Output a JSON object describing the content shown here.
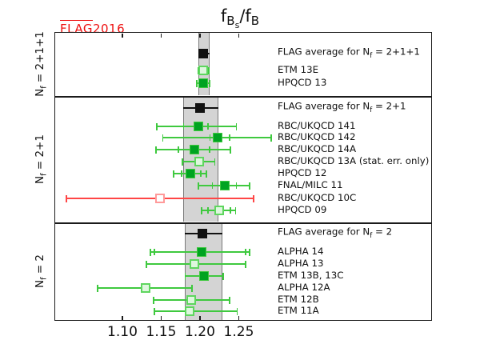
{
  "badge": {
    "flag": "FLAG",
    "year": "2016"
  },
  "title": {
    "base1": "f",
    "sub1": "B",
    "subsub1": "s",
    "base2": "/f",
    "sub2": "B"
  },
  "colors": {
    "accent_red": "#ee1111",
    "frame": "#1b1b1b",
    "band_fill": "#d4d4d4",
    "band_edge": "#7a7a7a",
    "black_marker": "#111111",
    "green_filled": "#00a321",
    "green_bar": "#3fc93f",
    "green_open_fill": "#def7de",
    "green_open_border": "#5fd65f",
    "red_bar": "#ff4646",
    "red_open_border": "#ff9a9a",
    "red_open_fill": "#ffffff"
  },
  "chart_data": {
    "type": "scatter",
    "title": "f_Bs/f_B",
    "xlabel": "",
    "ylabel": "",
    "xlim": [
      1.0124,
      1.499
    ],
    "x_ticks": [
      1.1,
      1.15,
      1.2,
      1.25
    ],
    "x_tick_labels": [
      "1.10",
      "1.15",
      "1.20",
      "1.25"
    ],
    "grid": false,
    "legend": "none",
    "sections": [
      {
        "label": "Nf = 2+1+1",
        "band": [
          1.198,
          1.212
        ],
        "y_range": [
          40,
          120
        ],
        "label_center_y": 80,
        "rows": [
          {
            "name": "FLAG average for Nf = 2+1+1",
            "marker": "black-filled",
            "value": 1.204,
            "err": [
              1.198,
              1.212
            ],
            "y": 67
          },
          {
            "name": "ETM 13E",
            "marker": "green-open",
            "value": 1.204,
            "err": [
              1.198,
              1.211
            ],
            "y": 88
          },
          {
            "name": "HPQCD 13",
            "marker": "green-filled",
            "value": 1.204,
            "err": [
              1.196,
              1.212
            ],
            "y": 104
          }
        ]
      },
      {
        "label": "Nf = 2+1",
        "band": [
          1.178,
          1.224
        ],
        "y_range": [
          120,
          278
        ],
        "label_center_y": 199,
        "rows": [
          {
            "name": "FLAG average for Nf = 2+1",
            "marker": "black-filled",
            "value": 1.2,
            "err": [
              1.178,
              1.224
            ],
            "y": 135
          },
          {
            "name": "RBC/UKQCD 141",
            "marker": "green-filled",
            "value": 1.198,
            "err": [
              1.144,
              1.247
            ],
            "inner": [
              1.179,
              1.21
            ],
            "y": 158
          },
          {
            "name": "RBC/UKQCD 142",
            "marker": "green-filled",
            "value": 1.223,
            "err": [
              1.152,
              1.292
            ],
            "inner": [
              1.213,
              1.238
            ],
            "y": 172
          },
          {
            "name": "RBC/UKQCD 14A",
            "marker": "green-filled",
            "value": 1.193,
            "err": [
              1.143,
              1.239
            ],
            "inner": [
              1.172,
              1.212
            ],
            "y": 187
          },
          {
            "name": "RBC/UKQCD 13A (stat. err. only)",
            "marker": "green-open",
            "value": 1.199,
            "err": [
              1.177,
              1.219
            ],
            "y": 202
          },
          {
            "name": "HPQCD 12",
            "marker": "green-filled",
            "value": 1.188,
            "err": [
              1.166,
              1.208
            ],
            "inner": [
              1.176,
              1.201
            ],
            "y": 217
          },
          {
            "name": "FNAL/MILC 11",
            "marker": "green-filled",
            "value": 1.232,
            "err": [
              1.198,
              1.264
            ],
            "inner": [
              1.216,
              1.247
            ],
            "y": 232
          },
          {
            "name": "RBC/UKQCD 10C",
            "marker": "red-open",
            "value": 1.148,
            "err": [
              1.028,
              1.269
            ],
            "y": 248
          },
          {
            "name": "HPQCD 09",
            "marker": "green-open",
            "value": 1.225,
            "err": [
              1.202,
              1.246
            ],
            "inner": [
              1.21,
              1.239
            ],
            "y": 263
          }
        ]
      },
      {
        "label": "Nf = 2",
        "band": [
          1.18,
          1.229
        ],
        "y_range": [
          278,
          401
        ],
        "label_center_y": 339,
        "rows": [
          {
            "name": "FLAG average for Nf = 2",
            "marker": "black-filled",
            "value": 1.203,
            "err": [
              1.18,
              1.229
            ],
            "y": 292
          },
          {
            "name": "ALPHA 14",
            "marker": "green-filled",
            "value": 1.202,
            "err": [
              1.136,
              1.264
            ],
            "inner": [
              1.141,
              1.259
            ],
            "y": 315
          },
          {
            "name": "ALPHA 13",
            "marker": "green-open",
            "value": 1.193,
            "err": [
              1.131,
              1.259
            ],
            "y": 330
          },
          {
            "name": "ETM 13B, 13C",
            "marker": "green-filled",
            "value": 1.205,
            "err": [
              1.181,
              1.23
            ],
            "y": 345
          },
          {
            "name": "ALPHA 12A",
            "marker": "green-open",
            "value": 1.13,
            "err": [
              1.068,
              1.19
            ],
            "y": 360
          },
          {
            "name": "ETM 12B",
            "marker": "green-open",
            "value": 1.189,
            "err": [
              1.14,
              1.238
            ],
            "y": 375
          },
          {
            "name": "ETM 11A",
            "marker": "green-open",
            "value": 1.187,
            "err": [
              1.141,
              1.248
            ],
            "y": 389
          }
        ]
      }
    ]
  }
}
